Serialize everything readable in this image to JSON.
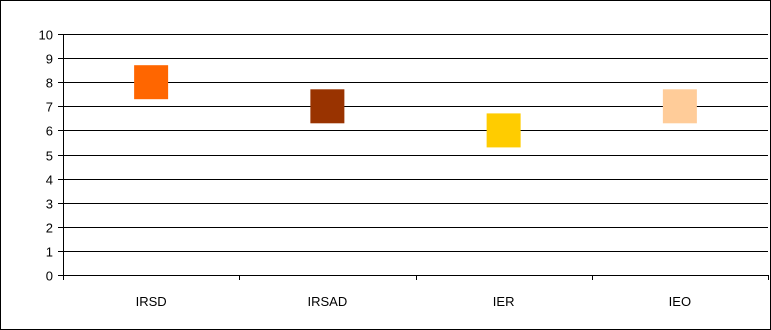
{
  "chart_data": {
    "type": "scatter",
    "title": "",
    "xlabel": "",
    "ylabel": "",
    "categories": [
      "IRSD",
      "IRSAD",
      "IER",
      "IEO"
    ],
    "values": [
      8,
      7,
      6,
      7
    ],
    "marker": "square",
    "colors": [
      "#ff6600",
      "#993300",
      "#ffcc00",
      "#ffcc99"
    ],
    "ylim": [
      0,
      10
    ],
    "yticks": [
      "0",
      "1",
      "2",
      "3",
      "4",
      "5",
      "6",
      "7",
      "8",
      "9",
      "10"
    ],
    "grid": true,
    "legend": "none"
  }
}
